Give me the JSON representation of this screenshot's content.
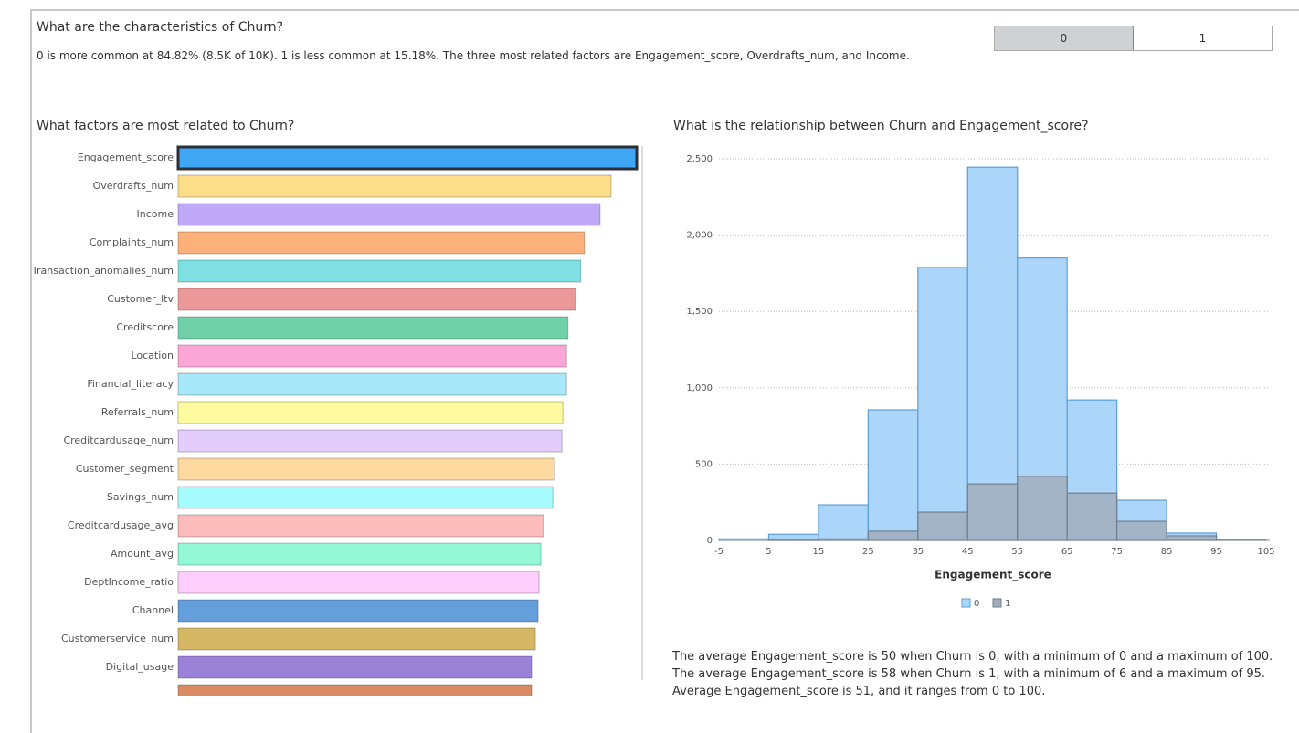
{
  "header": {
    "title": "What are the characteristics of Churn?",
    "summary": "0 is more common at 84.82% (8.5K of 10K). 1 is less common at 15.18%. The three most related factors are Engagement_score, Overdrafts_num, and Income."
  },
  "toggle": [
    "0",
    "1"
  ],
  "chart_data": [
    {
      "type": "bar",
      "orientation": "horizontal",
      "title": "What factors are most related to Churn?",
      "categories": [
        "Engagement_score",
        "Overdrafts_num",
        "Income",
        "Complaints_num",
        "Transaction_anomalies_num",
        "Customer_ltv",
        "Creditscore",
        "Location",
        "Financial_literacy",
        "Referrals_num",
        "Creditcardusage_num",
        "Customer_segment",
        "Savings_num",
        "Creditcardusage_avg",
        "Amount_avg",
        "DeptIncome_ratio",
        "Channel",
        "Customerservice_num",
        "Digital_usage",
        null
      ],
      "values": [
        1.0,
        0.944,
        0.92,
        0.886,
        0.878,
        0.867,
        0.85,
        0.847,
        0.847,
        0.839,
        0.837,
        0.821,
        0.817,
        0.797,
        0.791,
        0.787,
        0.785,
        0.779,
        0.771,
        0.771
      ],
      "colors": [
        "#3ea6f5",
        "#fdde88",
        "#c0a8f8",
        "#fdb07a",
        "#7fe0e3",
        "#eb9899",
        "#70d0a8",
        "#fba6d6",
        "#a8e8fb",
        "#fdfaa0",
        "#e3cdfd",
        "#fdd9a0",
        "#a5fafd",
        "#fdbcbc",
        "#93f8d6",
        "#fdcdfb",
        "#649fdb",
        "#d6b864",
        "#9b82d8",
        "#db8b62"
      ],
      "xlim": [
        0,
        1
      ]
    },
    {
      "type": "histogram",
      "title": "What is the relationship between Churn and Engagement_score?",
      "x_label": "Engagement_score",
      "bins": [
        -5,
        5,
        15,
        25,
        35,
        45,
        55,
        65,
        75,
        85,
        95,
        105
      ],
      "series": [
        {
          "name": "0",
          "color": "#acd6f9",
          "values": [
            10,
            40,
            233,
            855,
            1790,
            2445,
            1850,
            920,
            263,
            48,
            5
          ]
        },
        {
          "name": "1",
          "color": "#a0aebd",
          "values": [
            0,
            2,
            10,
            60,
            185,
            370,
            420,
            310,
            125,
            30,
            0
          ]
        }
      ],
      "xlim": [
        -5,
        105
      ],
      "xticks": [
        -5,
        5,
        15,
        25,
        35,
        45,
        55,
        65,
        75,
        85,
        95,
        105
      ],
      "ylim": [
        0,
        2500
      ],
      "yticks": [
        0,
        500,
        {
          "value": 1000,
          "label": "1,000"
        },
        {
          "value": 1500,
          "label": "1,500"
        },
        {
          "value": 2000,
          "label": "2,000"
        },
        {
          "value": 2500,
          "label": "2,500"
        }
      ],
      "grid": true,
      "legend": "bottom"
    }
  ],
  "footer_text": "The average Engagement_score is 50 when Churn is 0, with a minimum of 0 and a maximum of 100. The average Engagement_score is 58 when Churn is 1, with a minimum of 6 and a maximum of 95. Average Engagement_score is 51, and it ranges from 0 to 100."
}
